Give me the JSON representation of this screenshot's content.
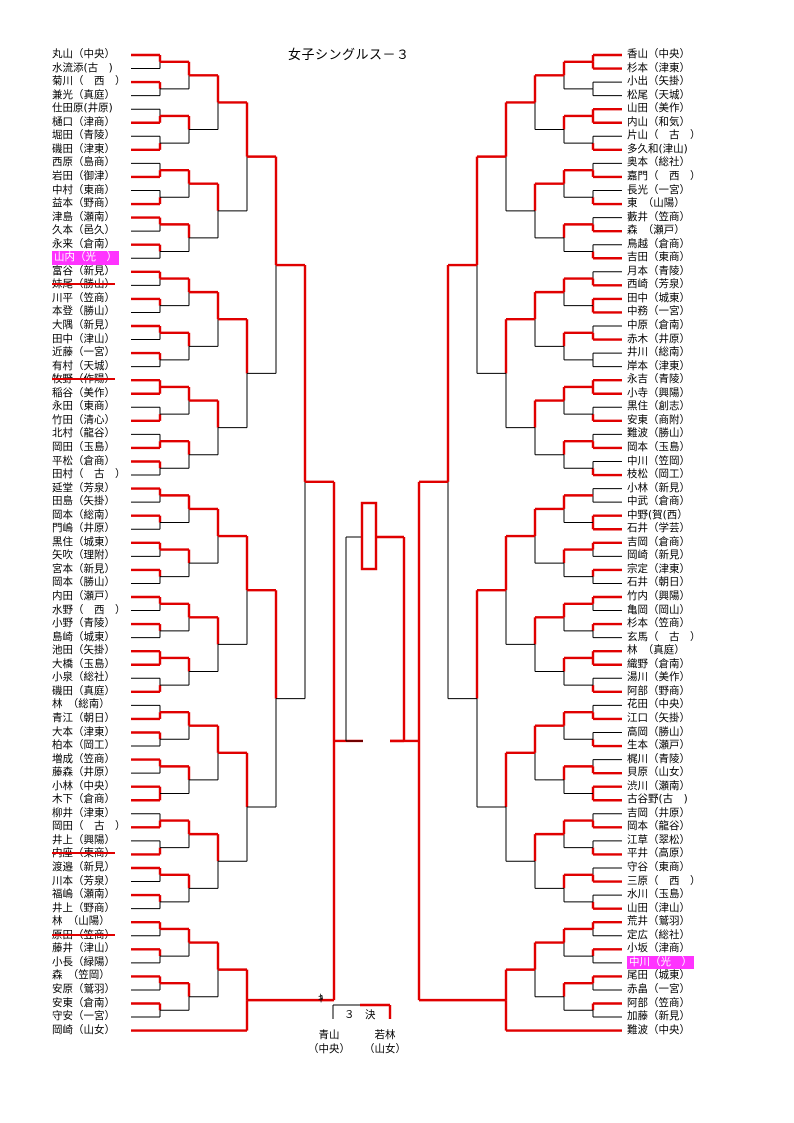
{
  "title": "女子シングルス－３",
  "left_entries": [
    {
      "text": "丸山（中央）",
      "winner": true
    },
    {
      "text": "水流添(古　)",
      "winner": false
    },
    {
      "text": "菊川（　西　）",
      "winner": true
    },
    {
      "text": "兼光（真庭）",
      "winner": false
    },
    {
      "text": "仕田原(井原)",
      "winner": false
    },
    {
      "text": "樋口（津商）",
      "winner": true
    },
    {
      "text": "堀田（青陵）",
      "winner": false
    },
    {
      "text": "磯田（津東）",
      "winner": true
    },
    {
      "text": "西原（島商）",
      "winner": false
    },
    {
      "text": "岩田（御津）",
      "winner": true
    },
    {
      "text": "中村（東商）",
      "winner": false
    },
    {
      "text": "益本（野商）",
      "winner": true
    },
    {
      "text": "津島（瀬南）",
      "winner": true
    },
    {
      "text": "久本（邑久）",
      "winner": false
    },
    {
      "text": "永来（倉南）",
      "winner": true
    },
    {
      "text": "山内（光　）",
      "winner": false,
      "highlight": true
    },
    {
      "text": "富谷（新見）",
      "winner": true
    },
    {
      "text": "妹尾（勝山）",
      "winner": false,
      "struck": true
    },
    {
      "text": "川平（笠商）",
      "winner": true
    },
    {
      "text": "本登（勝山）",
      "winner": false
    },
    {
      "text": "大隅（新見）",
      "winner": true
    },
    {
      "text": "田中（津山）",
      "winner": false
    },
    {
      "text": "近藤（一宮）",
      "winner": true
    },
    {
      "text": "有村（天城）",
      "winner": false
    },
    {
      "text": "牧野（作陽）",
      "winner": true,
      "struck": true
    },
    {
      "text": "稲谷（美作）",
      "winner": true
    },
    {
      "text": "永田（東商）",
      "winner": false
    },
    {
      "text": "竹田（清心）",
      "winner": true
    },
    {
      "text": "北村（龍谷）",
      "winner": false
    },
    {
      "text": "岡田（玉島）",
      "winner": true
    },
    {
      "text": "平松（倉商）",
      "winner": true
    },
    {
      "text": "田村（　古　）",
      "winner": false
    },
    {
      "text": "延堂（芳泉）",
      "winner": true
    },
    {
      "text": "田島（矢掛）",
      "winner": false
    },
    {
      "text": "岡本（総南）",
      "winner": true
    },
    {
      "text": "門嶋（井原）",
      "winner": false
    },
    {
      "text": "黒住（城東）",
      "winner": true
    },
    {
      "text": "矢吹（理附）",
      "winner": false
    },
    {
      "text": "宮本（新見）",
      "winner": true
    },
    {
      "text": "岡本（勝山）",
      "winner": false
    },
    {
      "text": "内田（瀬戸）",
      "winner": true
    },
    {
      "text": "水野（　西　）",
      "winner": false
    },
    {
      "text": "小野（青陵）",
      "winner": true
    },
    {
      "text": "島崎（城東）",
      "winner": false
    },
    {
      "text": "池田（矢掛）",
      "winner": true
    },
    {
      "text": "大橋（玉島）",
      "winner": true
    },
    {
      "text": "小泉（総社）",
      "winner": false
    },
    {
      "text": "磯田（真庭）",
      "winner": true
    },
    {
      "text": "林　（総南）",
      "winner": false
    },
    {
      "text": "青江（朝日）",
      "winner": true
    },
    {
      "text": "大本（津東）",
      "winner": true
    },
    {
      "text": "柏本（岡工）",
      "winner": false
    },
    {
      "text": "増成（笠商）",
      "winner": true
    },
    {
      "text": "藤森（井原）",
      "winner": false
    },
    {
      "text": "小林（中央）",
      "winner": true
    },
    {
      "text": "木下（倉商）",
      "winner": true
    },
    {
      "text": "柳井（津東）",
      "winner": false
    },
    {
      "text": "岡田（　古　）",
      "winner": true
    },
    {
      "text": "井上（興陽）",
      "winner": false
    },
    {
      "text": "内座（東商）",
      "winner": true,
      "struck": true
    },
    {
      "text": "渡邉（新見）",
      "winner": true
    },
    {
      "text": "川本（芳泉）",
      "winner": false
    },
    {
      "text": "福嶋（瀬南）",
      "winner": true
    },
    {
      "text": "井上（野商）",
      "winner": false
    },
    {
      "text": "林　（山陽）",
      "winner": true
    },
    {
      "text": "原田（笠商）",
      "winner": false,
      "struck": true
    },
    {
      "text": "藤井（津山）",
      "winner": true
    },
    {
      "text": "小長（緑陽）",
      "winner": false
    },
    {
      "text": "森　（笠岡）",
      "winner": true
    },
    {
      "text": "安原（鷲羽）",
      "winner": false
    },
    {
      "text": "安東（倉南）",
      "winner": true
    },
    {
      "text": "守安（一宮）",
      "winner": false
    },
    {
      "text": "岡崎（山女）",
      "winner": true
    }
  ],
  "right_entries": [
    {
      "text": "香山（中央）",
      "winner": true
    },
    {
      "text": "杉本（津東）",
      "winner": true
    },
    {
      "text": "小出（矢掛）",
      "winner": false
    },
    {
      "text": "松尾（天城）",
      "winner": false
    },
    {
      "text": "山田（美作）",
      "winner": true
    },
    {
      "text": "内山（和気）",
      "winner": true
    },
    {
      "text": "片山（　古　）",
      "winner": false
    },
    {
      "text": "多久和(津山)",
      "winner": true
    },
    {
      "text": "奥本（総社）",
      "winner": false
    },
    {
      "text": "嘉門（　西　）",
      "winner": true
    },
    {
      "text": "長光（一宮）",
      "winner": false
    },
    {
      "text": "東　（山陽）",
      "winner": true
    },
    {
      "text": "藪井（笠商）",
      "winner": false
    },
    {
      "text": "森　（瀬戸）",
      "winner": true
    },
    {
      "text": "鳥越（倉商）",
      "winner": false
    },
    {
      "text": "吉田（東商）",
      "winner": true
    },
    {
      "text": "月本（青陵）",
      "winner": false
    },
    {
      "text": "西崎（芳泉）",
      "winner": true
    },
    {
      "text": "田中（城東）",
      "winner": true
    },
    {
      "text": "中務（一宮）",
      "winner": true
    },
    {
      "text": "中原（倉南）",
      "winner": false
    },
    {
      "text": "赤木（井原）",
      "winner": true
    },
    {
      "text": "井川（総南）",
      "winner": false
    },
    {
      "text": "岸本（津東）",
      "winner": false
    },
    {
      "text": "永吉（青陵）",
      "winner": true
    },
    {
      "text": "小寺（興陽）",
      "winner": true
    },
    {
      "text": "黒住（創志）",
      "winner": false
    },
    {
      "text": "安東（商附）",
      "winner": true
    },
    {
      "text": "難波（勝山）",
      "winner": false
    },
    {
      "text": "岡本（玉島）",
      "winner": true
    },
    {
      "text": "中川（笠岡）",
      "winner": false
    },
    {
      "text": "枝松（岡工）",
      "winner": true
    },
    {
      "text": "小林（新見）",
      "winner": false
    },
    {
      "text": "中武（倉商）",
      "winner": false
    },
    {
      "text": "中野(賀(西）",
      "winner": true
    },
    {
      "text": "石井（学芸）",
      "winner": true
    },
    {
      "text": "吉岡（倉商）",
      "winner": true
    },
    {
      "text": "岡崎（新見）",
      "winner": false
    },
    {
      "text": "宗定（津東）",
      "winner": true
    },
    {
      "text": "石井（朝日）",
      "winner": false
    },
    {
      "text": "竹内（興陽）",
      "winner": true
    },
    {
      "text": "亀岡（岡山）",
      "winner": false
    },
    {
      "text": "杉本（笠商）",
      "winner": true
    },
    {
      "text": "玄馬（　古　）",
      "winner": false
    },
    {
      "text": "林　（真庭）",
      "winner": true
    },
    {
      "text": "織野（倉南）",
      "winner": true
    },
    {
      "text": "湯川（美作）",
      "winner": false
    },
    {
      "text": "阿部（野商）",
      "winner": true
    },
    {
      "text": "花田（中央）",
      "winner": false
    },
    {
      "text": "江口（矢掛）",
      "winner": true
    },
    {
      "text": "高岡（勝山）",
      "winner": false
    },
    {
      "text": "生本（瀬戸）",
      "winner": true
    },
    {
      "text": "梶川（青陵）",
      "winner": false
    },
    {
      "text": "貝原（山女）",
      "winner": true
    },
    {
      "text": "渋川（瀬南）",
      "winner": true
    },
    {
      "text": "古谷野(古　)",
      "winner": true
    },
    {
      "text": "吉岡（井原）",
      "winner": false
    },
    {
      "text": "岡本（龍谷）",
      "winner": true
    },
    {
      "text": "江草（翠松）",
      "winner": false
    },
    {
      "text": "平井（高原）",
      "winner": true
    },
    {
      "text": "守谷（東商）",
      "winner": false
    },
    {
      "text": "三原（　西　）",
      "winner": true
    },
    {
      "text": "水川（玉島）",
      "winner": false
    },
    {
      "text": "山田（津山）",
      "winner": true
    },
    {
      "text": "荒井（鷲羽）",
      "winner": true
    },
    {
      "text": "定広（総社）",
      "winner": false
    },
    {
      "text": "小坂（津商）",
      "winner": true
    },
    {
      "text": "中川（光　）",
      "winner": false,
      "highlight": true
    },
    {
      "text": "尾田（城東）",
      "winner": true
    },
    {
      "text": "赤畠（一宮）",
      "winner": false
    },
    {
      "text": "阿部（笠商）",
      "winner": true
    },
    {
      "text": "加藤（新見）",
      "winner": false
    },
    {
      "text": "難波（中央）",
      "winner": true
    }
  ],
  "third_place": {
    "left_mark": "ｷ",
    "label": "３　決",
    "player_left": "青山",
    "school_left": "（中央）",
    "player_right": "若林",
    "school_right": "（山女）"
  },
  "colors": {
    "winner_line": "#e00000",
    "loser_line": "#000000",
    "highlight": "#ff33ff"
  }
}
